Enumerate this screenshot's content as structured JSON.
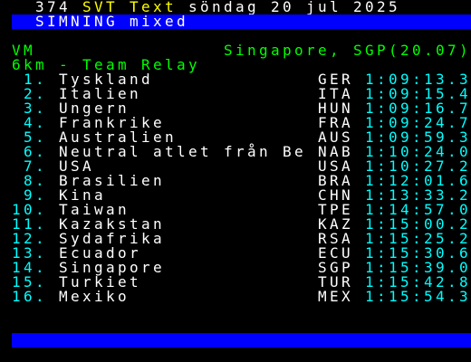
{
  "header": {
    "page": "374",
    "service": "SVT Text",
    "date": "söndag 20 jul 2025"
  },
  "section": "SIMNING mixed",
  "event": {
    "competition": "VM",
    "location": "Singapore, SGP(20.07)",
    "race": "6km - Team Relay"
  },
  "results": [
    {
      "rank": "1.",
      "team": "Tyskland",
      "code": "GER",
      "time": "1:09:13.3"
    },
    {
      "rank": "2.",
      "team": "Italien",
      "code": "ITA",
      "time": "1:09:15.4"
    },
    {
      "rank": "3.",
      "team": "Ungern",
      "code": "HUN",
      "time": "1:09:16.7"
    },
    {
      "rank": "4.",
      "team": "Frankrike",
      "code": "FRA",
      "time": "1:09:24.7"
    },
    {
      "rank": "5.",
      "team": "Australien",
      "code": "AUS",
      "time": "1:09:59.3"
    },
    {
      "rank": "6.",
      "team": "Neutral atlet från Be",
      "code": "NAB",
      "time": "1:10:24.0"
    },
    {
      "rank": "7.",
      "team": "USA",
      "code": "USA",
      "time": "1:10:27.2"
    },
    {
      "rank": "8.",
      "team": "Brasilien",
      "code": "BRA",
      "time": "1:12:01.6"
    },
    {
      "rank": "9.",
      "team": "Kina",
      "code": "CHN",
      "time": "1:13:33.2"
    },
    {
      "rank": "10.",
      "team": "Taiwan",
      "code": "TPE",
      "time": "1:14:57.0"
    },
    {
      "rank": "11.",
      "team": "Kazakstan",
      "code": "KAZ",
      "time": "1:15:00.2"
    },
    {
      "rank": "12.",
      "team": "Sydafrika",
      "code": "RSA",
      "time": "1:15:25.2"
    },
    {
      "rank": "13.",
      "team": "Ecuador",
      "code": "ECU",
      "time": "1:15:30.6"
    },
    {
      "rank": "14.",
      "team": "Singapore",
      "code": "SGP",
      "time": "1:15:39.0"
    },
    {
      "rank": "15.",
      "team": "Turkiet",
      "code": "TUR",
      "time": "1:15:42.8"
    },
    {
      "rank": "16.",
      "team": "Mexiko",
      "code": "MEX",
      "time": "1:15:54.3"
    }
  ]
}
